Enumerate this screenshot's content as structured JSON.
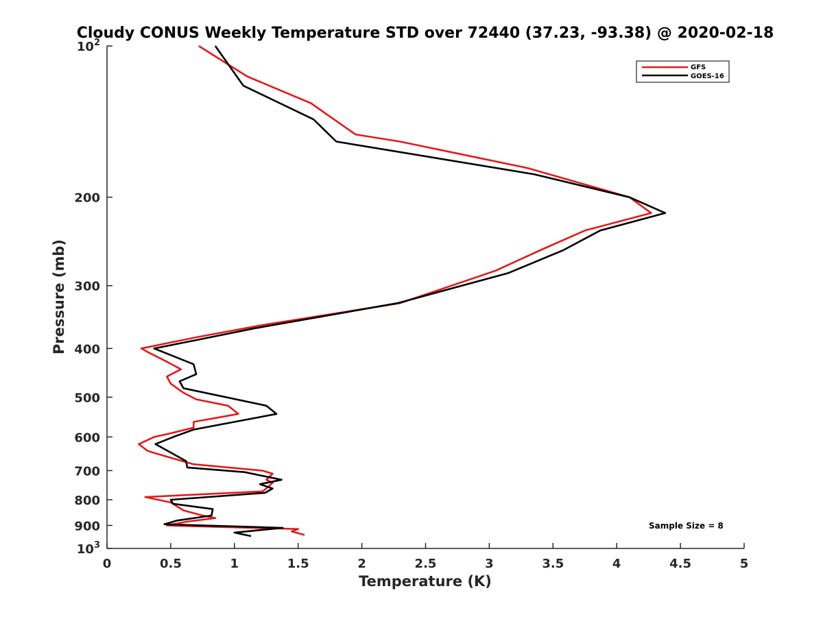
{
  "chart_data": {
    "type": "line",
    "title": "Cloudy CONUS Weekly Temperature STD over 72440 (37.23, -93.38) @ 2020-02-18",
    "xlabel": "Temperature (K)",
    "ylabel": "Pressure (mb)",
    "xlim": [
      0,
      5
    ],
    "ylim": [
      100,
      1000
    ],
    "y_scale": "log",
    "y_reversed": true,
    "grid": false,
    "legend_position": "top-right",
    "x_ticks": [
      0,
      0.5,
      1,
      1.5,
      2,
      2.5,
      3,
      3.5,
      4,
      4.5,
      5
    ],
    "x_tick_labels": [
      "0",
      "0.5",
      "1",
      "1.5",
      "2",
      "2.5",
      "3",
      "3.5",
      "4",
      "4.5",
      "5"
    ],
    "y_ticks": [
      100,
      200,
      300,
      400,
      500,
      600,
      700,
      800,
      900,
      1000
    ],
    "y_tick_labels": [
      "10^2",
      "200",
      "300",
      "400",
      "500",
      "600",
      "700",
      "800",
      "900",
      "10^3"
    ],
    "annotation": "Sample Size = 8",
    "series": [
      {
        "name": "GFS",
        "color": "#e31a1c",
        "points": [
          [
            0.72,
            100
          ],
          [
            1.1,
            115
          ],
          [
            1.6,
            130
          ],
          [
            1.95,
            150
          ],
          [
            2.3,
            155
          ],
          [
            3.3,
            175
          ],
          [
            4.1,
            200
          ],
          [
            4.27,
            215
          ],
          [
            3.75,
            233
          ],
          [
            3.4,
            255
          ],
          [
            3.05,
            280
          ],
          [
            2.3,
            325
          ],
          [
            1.2,
            360
          ],
          [
            0.7,
            380
          ],
          [
            0.27,
            400
          ],
          [
            0.33,
            408
          ],
          [
            0.47,
            425
          ],
          [
            0.58,
            440
          ],
          [
            0.47,
            455
          ],
          [
            0.5,
            470
          ],
          [
            0.6,
            490
          ],
          [
            0.7,
            505
          ],
          [
            0.95,
            520
          ],
          [
            1.03,
            540
          ],
          [
            0.68,
            560
          ],
          [
            0.68,
            575
          ],
          [
            0.5,
            590
          ],
          [
            0.37,
            600
          ],
          [
            0.25,
            620
          ],
          [
            0.32,
            640
          ],
          [
            0.5,
            660
          ],
          [
            0.68,
            680
          ],
          [
            1.22,
            700
          ],
          [
            1.3,
            710
          ],
          [
            1.25,
            730
          ],
          [
            1.3,
            740
          ],
          [
            1.25,
            760
          ],
          [
            1.22,
            770
          ],
          [
            0.3,
            790
          ],
          [
            0.5,
            810
          ],
          [
            0.6,
            840
          ],
          [
            0.75,
            860
          ],
          [
            0.85,
            870
          ],
          [
            0.62,
            885
          ],
          [
            0.47,
            900
          ],
          [
            1.5,
            915
          ],
          [
            1.45,
            925
          ],
          [
            1.55,
            940
          ]
        ]
      },
      {
        "name": "GOES-16",
        "color": "#000000",
        "points": [
          [
            0.85,
            100
          ],
          [
            1.07,
            120
          ],
          [
            1.62,
            140
          ],
          [
            1.8,
            155
          ],
          [
            3.35,
            180
          ],
          [
            4.1,
            200
          ],
          [
            4.38,
            215
          ],
          [
            3.87,
            233
          ],
          [
            3.58,
            255
          ],
          [
            3.15,
            283
          ],
          [
            2.28,
            325
          ],
          [
            1.15,
            365
          ],
          [
            0.7,
            385
          ],
          [
            0.37,
            400
          ],
          [
            0.68,
            430
          ],
          [
            0.7,
            450
          ],
          [
            0.57,
            465
          ],
          [
            0.6,
            480
          ],
          [
            1.25,
            520
          ],
          [
            1.33,
            540
          ],
          [
            0.68,
            580
          ],
          [
            0.52,
            600
          ],
          [
            0.38,
            620
          ],
          [
            0.62,
            670
          ],
          [
            0.63,
            690
          ],
          [
            1.08,
            705
          ],
          [
            1.37,
            730
          ],
          [
            1.2,
            745
          ],
          [
            1.3,
            760
          ],
          [
            1.24,
            775
          ],
          [
            0.5,
            800
          ],
          [
            0.52,
            815
          ],
          [
            0.83,
            835
          ],
          [
            0.82,
            860
          ],
          [
            0.55,
            880
          ],
          [
            0.45,
            895
          ],
          [
            1.38,
            910
          ],
          [
            1.0,
            930
          ],
          [
            1.13,
            945
          ]
        ]
      }
    ]
  }
}
